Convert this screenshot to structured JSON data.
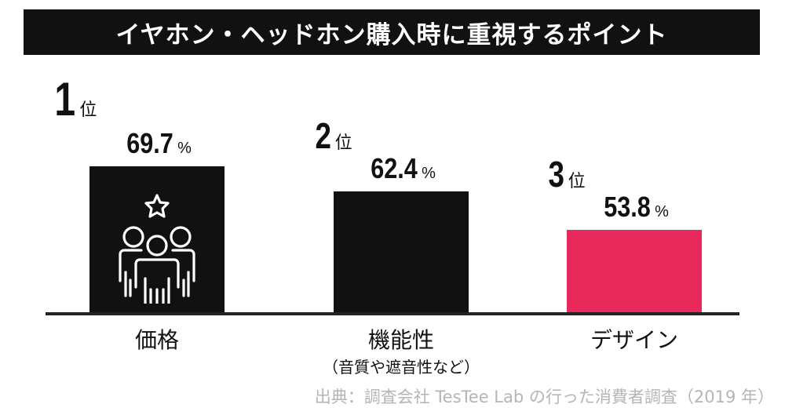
{
  "title": "イヤホン・ヘッドホン購入時に重視するポイント",
  "chart_data": {
    "type": "bar",
    "title": "イヤホン・ヘッドホン購入時に重視するポイント",
    "categories": [
      "価格",
      "機能性",
      "デザイン"
    ],
    "category_notes": [
      "",
      "（音質や遮音性など）",
      ""
    ],
    "ranks": [
      "1",
      "2",
      "3"
    ],
    "rank_unit": "位",
    "values": [
      69.7,
      62.4,
      53.8
    ],
    "value_labels": [
      "69.7",
      "62.4",
      "53.8"
    ],
    "unit": "%",
    "colors": [
      "#111111",
      "#111111",
      "#e8295b"
    ],
    "ylim": [
      35,
      72
    ],
    "xlabel": "",
    "ylabel": ""
  },
  "icons": {
    "bar1": "group-with-star-icon"
  },
  "source": "出典：調査会社 TesTee Lab の行った消費者調査（2019 年）"
}
